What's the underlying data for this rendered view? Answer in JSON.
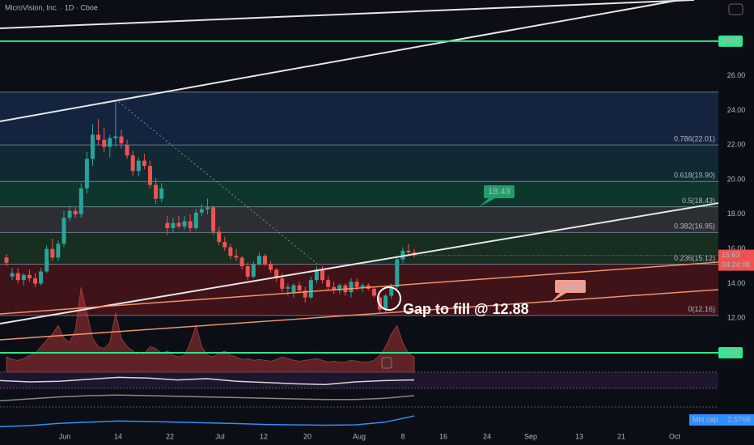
{
  "chart_data": {
    "type": "candlestick",
    "title": "MicroVision, Inc. · 1D · Cboe",
    "ylim": [
      8.88,
      30.38
    ],
    "yticks": [
      {
        "value": 26,
        "label": "26.00"
      },
      {
        "value": 24,
        "label": "24.00"
      },
      {
        "value": 22,
        "label": "22.00"
      },
      {
        "value": 20,
        "label": "20.00"
      },
      {
        "value": 18,
        "label": "18.00"
      },
      {
        "value": 16,
        "label": "16.00"
      },
      {
        "value": 14,
        "label": "14.00"
      },
      {
        "value": 12,
        "label": "12.00"
      }
    ],
    "hlines": [
      {
        "value": 28,
        "label": "28.00"
      },
      {
        "value": 10,
        "label": "10.00"
      }
    ],
    "hline_color": "#2ee88a",
    "up_color": "#26a69a",
    "down_color": "#ef5350",
    "x_labels": [
      "Jun",
      "14",
      "22",
      "Jul",
      "12",
      "20",
      "Aug",
      "8",
      "16",
      "24",
      "Sep",
      "13",
      "21",
      "Oct"
    ],
    "candles": [
      [
        15.5,
        15.7,
        15.0,
        15.2
      ],
      [
        14.4,
        14.9,
        14.2,
        14.6
      ],
      [
        14.6,
        14.9,
        14.0,
        14.2
      ],
      [
        14.2,
        14.6,
        13.9,
        14.5
      ],
      [
        14.5,
        14.8,
        14.1,
        14.3
      ],
      [
        14.3,
        14.6,
        13.8,
        14.0
      ],
      [
        14.0,
        14.9,
        13.9,
        14.7
      ],
      [
        14.7,
        16.2,
        14.6,
        16.0
      ],
      [
        16.0,
        16.6,
        15.3,
        15.5
      ],
      [
        15.5,
        16.5,
        15.3,
        16.3
      ],
      [
        16.3,
        18.2,
        16.1,
        17.8
      ],
      [
        17.8,
        18.5,
        17.6,
        18.2
      ],
      [
        18.2,
        18.4,
        17.8,
        18.0
      ],
      [
        18.0,
        19.8,
        17.8,
        19.5
      ],
      [
        19.5,
        21.6,
        19.2,
        21.2
      ],
      [
        21.2,
        23.2,
        20.8,
        22.6
      ],
      [
        22.6,
        23.5,
        22.0,
        22.3
      ],
      [
        22.3,
        23.0,
        21.6,
        21.9
      ],
      [
        21.9,
        22.6,
        21.3,
        22.4
      ],
      [
        22.4,
        24.6,
        21.9,
        22.5
      ],
      [
        22.5,
        22.9,
        21.8,
        22.1
      ],
      [
        22.0,
        22.3,
        21.2,
        21.4
      ],
      [
        21.4,
        21.7,
        20.2,
        20.5
      ],
      [
        20.5,
        21.3,
        20.2,
        21.1
      ],
      [
        21.1,
        21.5,
        20.6,
        20.8
      ],
      [
        20.8,
        21.1,
        19.5,
        19.7
      ],
      [
        19.7,
        20.1,
        18.6,
        18.9
      ],
      [
        18.9,
        19.8,
        18.7,
        19.5
      ],
      [
        17.5,
        17.9,
        16.8,
        17.2
      ],
      [
        17.2,
        17.8,
        16.9,
        17.5
      ],
      [
        17.5,
        17.9,
        17.2,
        17.3
      ],
      [
        17.3,
        17.9,
        17.1,
        17.6
      ],
      [
        17.6,
        18.0,
        17.0,
        17.2
      ],
      [
        17.2,
        18.3,
        17.1,
        18.1
      ],
      [
        18.1,
        18.6,
        17.9,
        18.3
      ],
      [
        18.3,
        18.9,
        18.0,
        18.4
      ],
      [
        18.4,
        18.5,
        16.8,
        17.0
      ],
      [
        17.0,
        17.3,
        16.2,
        16.4
      ],
      [
        16.4,
        16.7,
        15.9,
        16.1
      ],
      [
        16.1,
        16.3,
        15.4,
        15.6
      ],
      [
        15.6,
        16.0,
        15.3,
        15.5
      ],
      [
        15.5,
        15.6,
        14.8,
        15.0
      ],
      [
        15.0,
        15.2,
        14.2,
        14.4
      ],
      [
        14.4,
        15.3,
        14.3,
        15.1
      ],
      [
        15.1,
        15.8,
        15.0,
        15.6
      ],
      [
        15.6,
        15.7,
        15.0,
        15.1
      ],
      [
        15.1,
        15.3,
        14.6,
        14.8
      ],
      [
        14.8,
        14.9,
        14.1,
        14.3
      ],
      [
        14.3,
        14.6,
        13.5,
        13.7
      ],
      [
        13.7,
        14.0,
        13.3,
        13.8
      ],
      [
        13.5,
        14.0,
        13.2,
        13.9
      ],
      [
        13.9,
        14.1,
        13.5,
        13.6
      ],
      [
        13.6,
        13.8,
        12.9,
        13.2
      ],
      [
        13.2,
        14.4,
        13.1,
        14.2
      ],
      [
        14.2,
        15.0,
        14.0,
        14.8
      ],
      [
        14.8,
        15.0,
        14.0,
        14.2
      ],
      [
        14.2,
        14.4,
        13.6,
        13.8
      ],
      [
        13.8,
        14.1,
        13.4,
        13.6
      ],
      [
        13.6,
        14.0,
        13.4,
        13.9
      ],
      [
        13.9,
        14.0,
        13.3,
        13.5
      ],
      [
        13.5,
        14.3,
        13.2,
        14.1
      ],
      [
        14.1,
        14.3,
        13.6,
        13.8
      ],
      [
        13.8,
        14.0,
        13.5,
        13.9
      ],
      [
        13.9,
        14.0,
        13.6,
        13.7
      ],
      [
        13.7,
        13.8,
        13.2,
        13.3
      ],
      [
        13.2,
        13.3,
        12.3,
        12.5
      ],
      [
        12.5,
        13.4,
        12.3,
        13.3
      ],
      [
        13.3,
        14.0,
        13.1,
        13.8
      ],
      [
        13.8,
        15.6,
        13.7,
        15.4
      ],
      [
        15.4,
        16.1,
        15.2,
        15.9
      ],
      [
        15.9,
        16.3,
        15.6,
        15.8
      ],
      [
        15.8,
        16.0,
        15.5,
        15.63
      ]
    ],
    "volume": [
      18,
      15,
      14,
      16,
      20,
      22,
      30,
      38,
      45,
      55,
      40,
      35,
      50,
      100,
      70,
      40,
      30,
      28,
      35,
      70,
      40,
      30,
      25,
      20,
      22,
      30,
      28,
      22,
      25,
      20,
      18,
      20,
      35,
      55,
      30,
      20,
      18,
      22,
      25,
      20,
      18,
      15,
      16,
      14,
      15,
      14,
      13,
      15,
      18,
      16,
      14,
      13,
      14,
      15,
      16,
      14,
      12,
      13,
      12,
      12,
      14,
      13,
      12,
      12,
      14,
      20,
      30,
      45,
      55,
      35,
      22,
      18
    ],
    "volume_lim": [
      0,
      100
    ],
    "fib": [
      {
        "price": 25.06,
        "label": null,
        "color": "rgba(40,90,160,0.30)"
      },
      {
        "price": 22.01,
        "label": "0.786(22.01)",
        "color": "rgba(25,100,115,0.32)"
      },
      {
        "price": 19.9,
        "label": "0.618(19.90)",
        "color": "rgba(20,115,80,0.40)"
      },
      {
        "price": 18.43,
        "label": "0.5(18.43)",
        "color": "rgba(130,130,130,0.28)"
      },
      {
        "price": 16.95,
        "label": "0.382(16.95)",
        "color": "rgba(45,105,55,0.35)"
      },
      {
        "price": 15.12,
        "label": "0.236(15.12)",
        "color": "rgba(150,30,30,0.38)"
      },
      {
        "price": 12.16,
        "label": "0(12.16)",
        "color": null
      }
    ],
    "callouts": [
      {
        "value": 18.43,
        "color": "#1e9e6a"
      },
      {
        "value": 12.88,
        "color": "#f29b8e"
      }
    ],
    "annotation": "Gap to fill @ 12.88",
    "last_price": 15.63,
    "countdown": "04:24:08",
    "osc1": {
      "values": [
        52,
        50,
        51,
        54,
        57,
        56,
        53,
        55,
        51,
        49,
        47,
        46,
        50,
        52,
        53
      ],
      "ylim": [
        40,
        65
      ]
    },
    "osc2": {
      "values": [
        42,
        45,
        48,
        50,
        51,
        50,
        49,
        48,
        47,
        46,
        45,
        44,
        44,
        46,
        50
      ],
      "ylim": [
        35,
        60
      ]
    },
    "mkt_cap": {
      "name": "Mkt cap",
      "values": [
        2.1,
        2.15,
        2.25,
        2.3,
        2.35,
        2.33,
        2.3,
        2.27,
        2.24,
        2.2,
        2.18,
        2.17,
        2.18,
        2.3,
        2.576
      ],
      "value_labels": [
        null,
        null,
        null,
        null,
        null,
        null,
        null,
        null,
        null,
        null,
        null,
        null,
        null,
        null,
        "2.576B"
      ],
      "ylim": [
        1.9,
        2.9
      ],
      "color": "#2f8fff"
    }
  }
}
